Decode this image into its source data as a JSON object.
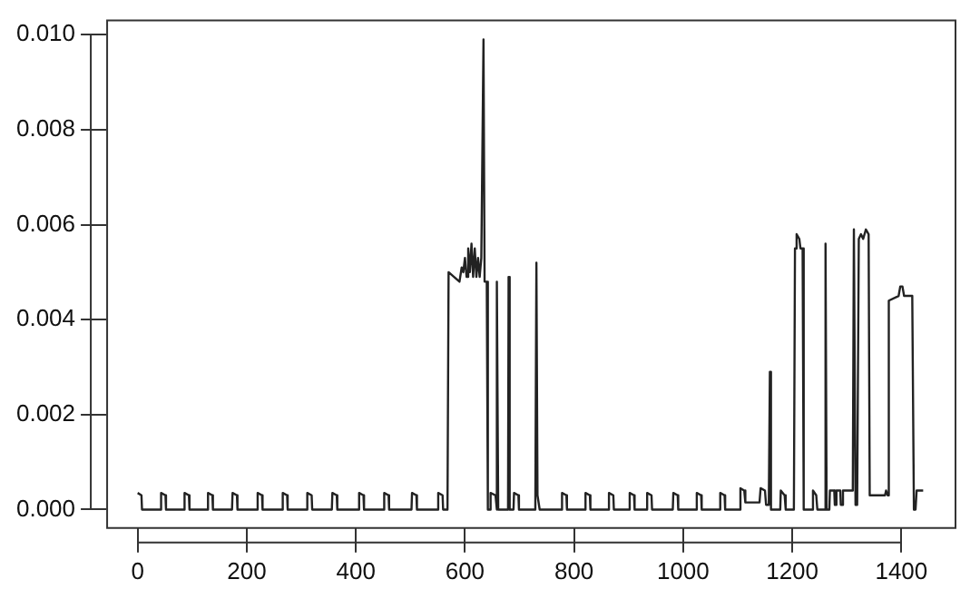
{
  "chart_data": {
    "type": "line",
    "color": "#222222",
    "marker": "none",
    "line_style": "solid",
    "grid": false,
    "legend": false,
    "x": [
      0,
      7,
      8,
      42,
      43,
      51,
      52,
      85,
      86,
      94,
      95,
      128,
      129,
      137,
      138,
      173,
      174,
      182,
      183,
      219,
      220,
      228,
      229,
      265,
      266,
      274,
      275,
      310,
      311,
      319,
      320,
      356,
      357,
      365,
      366,
      405,
      406,
      414,
      415,
      451,
      452,
      460,
      461,
      502,
      503,
      511,
      512,
      550,
      551,
      559,
      560,
      568,
      570,
      590,
      594,
      597,
      600,
      603,
      606,
      609,
      612,
      615,
      618,
      621,
      624,
      627,
      630,
      634,
      636,
      640,
      642,
      646,
      647,
      656,
      658,
      659,
      661,
      679,
      680,
      682,
      689,
      690,
      698,
      699,
      729,
      731,
      733,
      737,
      777,
      778,
      786,
      787,
      820,
      821,
      829,
      830,
      863,
      864,
      872,
      873,
      901,
      902,
      910,
      911,
      933,
      934,
      942,
      943,
      981,
      982,
      990,
      991,
      1024,
      1025,
      1033,
      1034,
      1067,
      1068,
      1076,
      1077,
      1104,
      1105,
      1112,
      1114,
      1140,
      1142,
      1150,
      1152,
      1157,
      1159,
      1161,
      1178,
      1179,
      1186,
      1188,
      1203,
      1205,
      1208,
      1213,
      1215,
      1219,
      1221,
      1237,
      1238,
      1244,
      1246,
      1260,
      1261,
      1263,
      1268,
      1269,
      1277,
      1278,
      1280,
      1281,
      1288,
      1289,
      1292,
      1293,
      1300,
      1305,
      1311,
      1313,
      1316,
      1319,
      1322,
      1326,
      1330,
      1335,
      1340,
      1342,
      1370,
      1372,
      1375,
      1377,
      1395,
      1398,
      1402,
      1405,
      1420,
      1423,
      1426,
      1428,
      1440
    ],
    "values": [
      0.00035,
      0.0003,
      0,
      0,
      0.00035,
      0.0003,
      0,
      0,
      0.00035,
      0.0003,
      0,
      0,
      0.00035,
      0.0003,
      0,
      0,
      0.00035,
      0.0003,
      0,
      0,
      0.00035,
      0.0003,
      0,
      0,
      0.00035,
      0.0003,
      0,
      0,
      0.00035,
      0.0003,
      0,
      0,
      0.00035,
      0.0003,
      0,
      0,
      0.00035,
      0.0003,
      0,
      0,
      0.00035,
      0.0003,
      0,
      0,
      0.00035,
      0.0003,
      0,
      0,
      0.00035,
      0.0003,
      0,
      0,
      0.005,
      0.0048,
      0.0051,
      0.005,
      0.0053,
      0.0049,
      0.0055,
      0.005,
      0.0056,
      0.0049,
      0.0055,
      0.0049,
      0.0053,
      0.0049,
      0.0053,
      0.0099,
      0.0048,
      0.0048,
      0,
      0,
      0.00035,
      0.0003,
      0,
      0.0048,
      0,
      0,
      0.0049,
      0,
      0,
      0.00035,
      0.0003,
      0,
      0,
      0.0052,
      0.0003,
      0,
      0,
      0.00035,
      0.0003,
      0,
      0,
      0.00035,
      0.0003,
      0,
      0,
      0.00035,
      0.0003,
      0,
      0,
      0.00035,
      0.0003,
      0,
      0,
      0.00035,
      0.0003,
      0,
      0,
      0.00035,
      0.0003,
      0,
      0,
      0.00035,
      0.0003,
      0,
      0,
      0.00035,
      0.0003,
      0,
      0,
      0.00045,
      0.0004,
      0.00015,
      0.00015,
      0.00045,
      0.0004,
      0.0001,
      0.0001,
      0.0029,
      0,
      0,
      0.0004,
      0.0003,
      0,
      0,
      0.0055,
      0.0058,
      0.0057,
      0.0055,
      0.0055,
      0,
      0,
      0.0004,
      0.0003,
      0,
      0,
      0.0056,
      0,
      0,
      0.0004,
      0.0004,
      0.0001,
      0.0001,
      0.0004,
      0.0004,
      0.0001,
      0.0001,
      0.0004,
      0.0004,
      0.0004,
      0.0004,
      0.0059,
      0.0001,
      0.0001,
      0.0057,
      0.0058,
      0.0057,
      0.0059,
      0.0058,
      0.0003,
      0.0003,
      0.0004,
      0.0003,
      0.0044,
      0.0045,
      0.0047,
      0.0047,
      0.0045,
      0.0045,
      0,
      0,
      0.0004,
      0.0004
    ],
    "xlim": [
      -57.6,
      1497.6
    ],
    "xticks": [
      0,
      200,
      400,
      600,
      800,
      1000,
      1200,
      1400
    ],
    "ylim": [
      -0.00037,
      0.01032
    ],
    "yticks": [
      {
        "value": 0,
        "label": "0.000"
      },
      {
        "value": 0.002,
        "label": "0.002"
      },
      {
        "value": 0.004,
        "label": "0.004"
      },
      {
        "value": 0.006,
        "label": "0.006"
      },
      {
        "value": 0.008,
        "label": "0.008"
      },
      {
        "value": 0.01,
        "label": "0.010"
      }
    ]
  }
}
